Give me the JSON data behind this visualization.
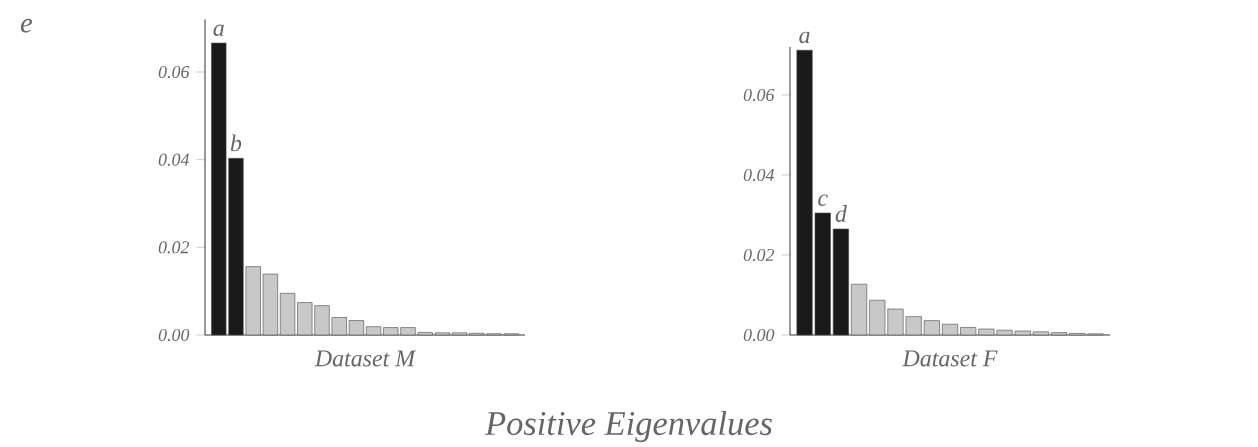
{
  "chart_data": [
    {
      "type": "bar",
      "xlabel": "Dataset M",
      "annotations": [
        "e",
        "Positive Eigenvalues"
      ],
      "categories": [
        null,
        null,
        null,
        null,
        null,
        null,
        null,
        null,
        null,
        null,
        null,
        null,
        null,
        null,
        null,
        null,
        null,
        null
      ],
      "values": [
        0.0666,
        0.0403,
        0.0156,
        0.0139,
        0.0095,
        0.0074,
        0.0067,
        0.004,
        0.0033,
        0.0019,
        0.0017,
        0.0017,
        0.0006,
        0.0005,
        0.0005,
        0.0004,
        0.0003,
        0.0003
      ],
      "colors": [
        "#1a1a1a",
        "#1a1a1a",
        "#c8c8c8",
        "#c8c8c8",
        "#c8c8c8",
        "#c8c8c8",
        "#c8c8c8",
        "#c8c8c8",
        "#c8c8c8",
        "#c8c8c8",
        "#c8c8c8",
        "#c8c8c8",
        "#c8c8c8",
        "#c8c8c8",
        "#c8c8c8",
        "#c8c8c8",
        "#c8c8c8",
        "#c8c8c8"
      ],
      "value_labels": [
        "a",
        "b",
        null,
        null,
        null,
        null,
        null,
        null,
        null,
        null,
        null,
        null,
        null,
        null,
        null,
        null,
        null,
        null
      ],
      "ylim": [
        0,
        0.072
      ],
      "yticks": [
        {
          "value": 0,
          "label": "0.00"
        },
        {
          "value": 0.02,
          "label": "0.02"
        },
        {
          "value": 0.04,
          "label": "0.04"
        },
        {
          "value": 0.06,
          "label": "0.06"
        }
      ],
      "grid": false
    },
    {
      "type": "bar",
      "xlabel": "Dataset F",
      "categories": [
        null,
        null,
        null,
        null,
        null,
        null,
        null,
        null,
        null,
        null,
        null,
        null,
        null,
        null,
        null,
        null,
        null
      ],
      "values": [
        0.0712,
        0.0305,
        0.0265,
        0.0127,
        0.0087,
        0.0065,
        0.0046,
        0.0036,
        0.0027,
        0.0019,
        0.0015,
        0.0012,
        0.001,
        0.0008,
        0.0006,
        0.0004,
        0.0003
      ],
      "colors": [
        "#1a1a1a",
        "#1a1a1a",
        "#1a1a1a",
        "#c8c8c8",
        "#c8c8c8",
        "#c8c8c8",
        "#c8c8c8",
        "#c8c8c8",
        "#c8c8c8",
        "#c8c8c8",
        "#c8c8c8",
        "#c8c8c8",
        "#c8c8c8",
        "#c8c8c8",
        "#c8c8c8",
        "#c8c8c8",
        "#c8c8c8"
      ],
      "value_labels": [
        "a",
        "c",
        "d",
        null,
        null,
        null,
        null,
        null,
        null,
        null,
        null,
        null,
        null,
        null,
        null,
        null,
        null
      ],
      "ylim": [
        0,
        0.072
      ],
      "yticks": [
        {
          "value": 0,
          "label": "0.00"
        },
        {
          "value": 0.02,
          "label": "0.02"
        },
        {
          "value": 0.04,
          "label": "0.04"
        },
        {
          "value": 0.06,
          "label": "0.06"
        }
      ],
      "grid": false
    }
  ]
}
